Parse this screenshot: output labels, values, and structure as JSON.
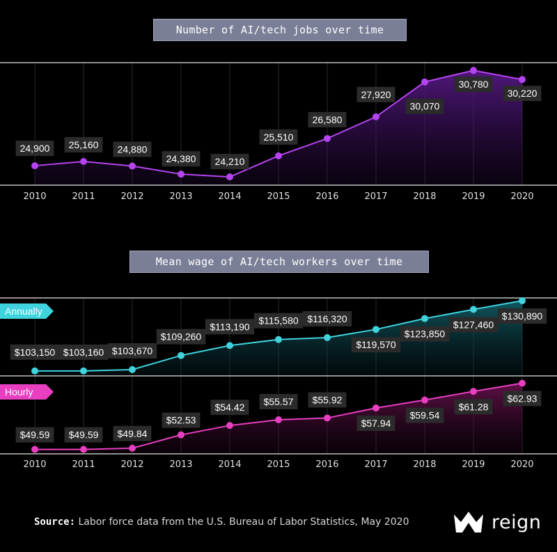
{
  "chart_data": [
    {
      "type": "line",
      "title": "Number of AI/tech jobs over time",
      "categories": [
        "2010",
        "2011",
        "2012",
        "2013",
        "2014",
        "2015",
        "2016",
        "2017",
        "2018",
        "2019",
        "2020"
      ],
      "series": [
        {
          "name": "Jobs",
          "color": "#b544f0",
          "values": [
            24900,
            25160,
            24880,
            24380,
            24210,
            25510,
            26580,
            27920,
            30070,
            30780,
            30220
          ],
          "labels": [
            "24,900",
            "25,160",
            "24,880",
            "24,380",
            "24,210",
            "25,510",
            "26,580",
            "27,920",
            "30,070",
            "30,780",
            "30,220"
          ]
        }
      ],
      "ylim": [
        23700,
        31260
      ],
      "grid": true
    },
    {
      "type": "line",
      "title": "Mean wage of AI/tech workers over time",
      "categories": [
        "2010",
        "2011",
        "2012",
        "2013",
        "2014",
        "2015",
        "2016",
        "2017",
        "2018",
        "2019",
        "2020"
      ],
      "series": [
        {
          "name": "Annually",
          "color": "#3fd3de",
          "values": [
            103150,
            103160,
            103670,
            109260,
            113190,
            115580,
            116320,
            119570,
            123850,
            127460,
            130890
          ],
          "labels": [
            "$103,150",
            "$103,160",
            "$103,670",
            "$109,260",
            "$113,190",
            "$115,580",
            "$116,320",
            "$119,570",
            "$123,850",
            "$127,460",
            "$130,890"
          ],
          "ylim": [
            101200,
            132000
          ]
        },
        {
          "name": "Hourly",
          "color": "#e83ec0",
          "values": [
            49.59,
            49.59,
            49.84,
            52.53,
            54.42,
            55.57,
            55.92,
            57.94,
            59.54,
            61.28,
            62.93
          ],
          "labels": [
            "$49.59",
            "$49.59",
            "$49.84",
            "$52.53",
            "$54.42",
            "$55.57",
            "$55.92",
            "$57.94",
            "$59.54",
            "$61.28",
            "$62.93"
          ],
          "ylim": [
            48.7,
            64.4
          ]
        }
      ],
      "grid": true
    }
  ],
  "footer": {
    "source_label": "Source:",
    "source_text": " Labor force data from the U.S. Bureau of Labor Statistics, May 2020"
  },
  "brand": {
    "name": "reign",
    "logo_icon": "crown-icon"
  }
}
